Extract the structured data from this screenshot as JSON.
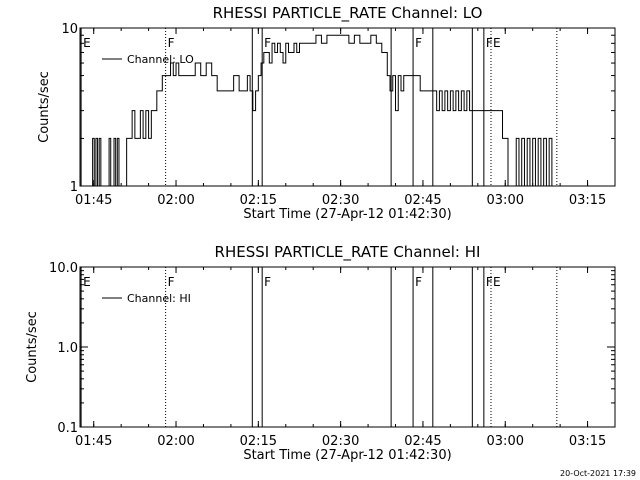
{
  "footer_timestamp": "20-Oct-2021 17:39",
  "chart_data": [
    {
      "type": "line",
      "title": "RHESSI PARTICLE_RATE Channel: LO",
      "xlabel": "Start Time (27-Apr-12 01:42:30)",
      "ylabel": "Counts/sec",
      "yscale": "log",
      "ylim": [
        1,
        10
      ],
      "y_tick_labels": [
        "1",
        "10"
      ],
      "y_ticks": [
        1,
        10
      ],
      "xlim_minutes": [
        0,
        97.5
      ],
      "x_tick_labels": [
        "01:45",
        "02:00",
        "02:15",
        "02:30",
        "02:45",
        "03:00",
        "03:15"
      ],
      "x_ticks_minutes": [
        2.5,
        17.5,
        32.5,
        47.5,
        62.5,
        77.5,
        92.5
      ],
      "legend": {
        "label": "Channel: LO",
        "placement": "top-left"
      },
      "markers": [
        {
          "label": "E",
          "x_minutes": 0.2,
          "style": "solid"
        },
        {
          "label": "F",
          "x_minutes": 15.6,
          "style": "dotted"
        },
        {
          "label": "",
          "x_minutes": 31.4,
          "style": "solid"
        },
        {
          "label": "F",
          "x_minutes": 33.2,
          "style": "solid"
        },
        {
          "label": "",
          "x_minutes": 56.7,
          "style": "solid"
        },
        {
          "label": "F",
          "x_minutes": 60.7,
          "style": "solid"
        },
        {
          "label": "",
          "x_minutes": 64.3,
          "style": "solid"
        },
        {
          "label": "",
          "x_minutes": 71.5,
          "style": "solid"
        },
        {
          "label": "F",
          "x_minutes": 73.6,
          "style": "solid"
        },
        {
          "label": "E",
          "x_minutes": 74.9,
          "style": "dotted"
        },
        {
          "label": "",
          "x_minutes": 86.9,
          "style": "dotted"
        }
      ],
      "series": [
        {
          "x_minutes": [
            2.0,
            2.3,
            2.6,
            2.9,
            3.2,
            3.5,
            3.8,
            4.1,
            4.4,
            4.7,
            5.0,
            5.3,
            5.6,
            5.9,
            6.2,
            6.5,
            6.8,
            7.1,
            7.4,
            7.7,
            8.0,
            8.5,
            9.0,
            9.5,
            10.0,
            10.5,
            11.0,
            11.5,
            12.0,
            12.5,
            13.0,
            13.5,
            14.0,
            14.5,
            15.0,
            15.5,
            16.0,
            16.5,
            17.0,
            17.5,
            18.0,
            19.0,
            20.0,
            21.0,
            22.0,
            23.0,
            24.0,
            25.0,
            26.0,
            27.0,
            28.0,
            29.0,
            30.0,
            30.5,
            31.0,
            31.5,
            32.0,
            32.5,
            33.0,
            33.5,
            34.0,
            34.5,
            35.0,
            35.5,
            36.0,
            36.5,
            37.0,
            37.5,
            38.0,
            38.5,
            39.0,
            39.5,
            40.0,
            41.0,
            42.0,
            43.0,
            44.0,
            45.0,
            46.0,
            47.0,
            48.0,
            49.0,
            50.0,
            51.0,
            52.0,
            53.0,
            54.0,
            55.0,
            56.0,
            56.5,
            57.0,
            57.5,
            58.0,
            58.5,
            59.0,
            60.0,
            61.0,
            62.0,
            63.0,
            64.0,
            64.5,
            65.0,
            65.5,
            66.0,
            66.5,
            67.0,
            67.5,
            68.0,
            68.5,
            69.0,
            69.5,
            70.0,
            70.5,
            71.0,
            72.0,
            73.0,
            74.0,
            75.0,
            76.0,
            77.0,
            77.5,
            78.0,
            78.5,
            79.0,
            79.5,
            80.0,
            80.5,
            81.0,
            81.5,
            82.0,
            82.5,
            83.0,
            83.5,
            84.0,
            84.5,
            85.0,
            85.5,
            86.0,
            86.5
          ],
          "values": [
            1,
            2,
            1,
            2,
            1,
            2,
            1,
            1,
            1,
            1,
            1,
            2,
            1,
            1,
            2,
            1,
            2,
            1,
            1,
            1,
            1,
            2,
            2,
            3,
            2,
            2,
            3,
            2,
            3,
            2,
            3,
            3,
            4,
            4,
            5,
            5,
            5,
            6,
            5,
            6,
            5,
            5,
            5,
            6,
            5,
            6,
            5,
            4,
            4,
            4,
            5,
            4,
            4,
            5,
            4,
            3,
            4,
            5,
            6,
            7,
            7,
            6,
            8,
            7,
            8,
            7,
            6,
            8,
            7,
            7,
            8,
            7,
            8,
            8,
            8,
            9,
            8,
            9,
            9,
            9,
            9,
            8,
            9,
            8,
            8,
            9,
            8,
            7,
            5,
            4,
            5,
            3,
            5,
            4,
            5,
            5,
            5,
            4,
            4,
            4,
            4,
            3,
            4,
            3,
            4,
            3,
            4,
            3,
            4,
            3,
            4,
            3,
            4,
            3,
            3,
            3,
            3,
            3,
            3,
            2,
            2,
            1,
            1,
            1,
            2,
            1,
            2,
            1,
            2,
            1,
            2,
            1,
            2,
            1,
            2,
            1,
            2,
            1,
            1
          ]
        }
      ]
    },
    {
      "type": "line",
      "title": "RHESSI PARTICLE_RATE Channel: HI",
      "xlabel": "Start Time (27-Apr-12 01:42:30)",
      "ylabel": "Counts/sec",
      "yscale": "log",
      "ylim": [
        0.1,
        10
      ],
      "y_tick_labels": [
        "0.1",
        "1.0",
        "10.0"
      ],
      "y_ticks": [
        0.1,
        1.0,
        10.0
      ],
      "xlim_minutes": [
        0,
        97.5
      ],
      "x_tick_labels": [
        "01:45",
        "02:00",
        "02:15",
        "02:30",
        "02:45",
        "03:00",
        "03:15"
      ],
      "x_ticks_minutes": [
        2.5,
        17.5,
        32.5,
        47.5,
        62.5,
        77.5,
        92.5
      ],
      "legend": {
        "label": "Channel: HI",
        "placement": "top-left"
      },
      "markers": [
        {
          "label": "E",
          "x_minutes": 0.2,
          "style": "solid"
        },
        {
          "label": "F",
          "x_minutes": 15.6,
          "style": "dotted"
        },
        {
          "label": "",
          "x_minutes": 31.4,
          "style": "solid"
        },
        {
          "label": "F",
          "x_minutes": 33.2,
          "style": "solid"
        },
        {
          "label": "",
          "x_minutes": 56.7,
          "style": "solid"
        },
        {
          "label": "F",
          "x_minutes": 60.7,
          "style": "solid"
        },
        {
          "label": "",
          "x_minutes": 64.3,
          "style": "solid"
        },
        {
          "label": "",
          "x_minutes": 71.5,
          "style": "solid"
        },
        {
          "label": "F",
          "x_minutes": 73.6,
          "style": "solid"
        },
        {
          "label": "E",
          "x_minutes": 74.9,
          "style": "dotted"
        },
        {
          "label": "",
          "x_minutes": 86.9,
          "style": "dotted"
        }
      ],
      "series": []
    }
  ]
}
